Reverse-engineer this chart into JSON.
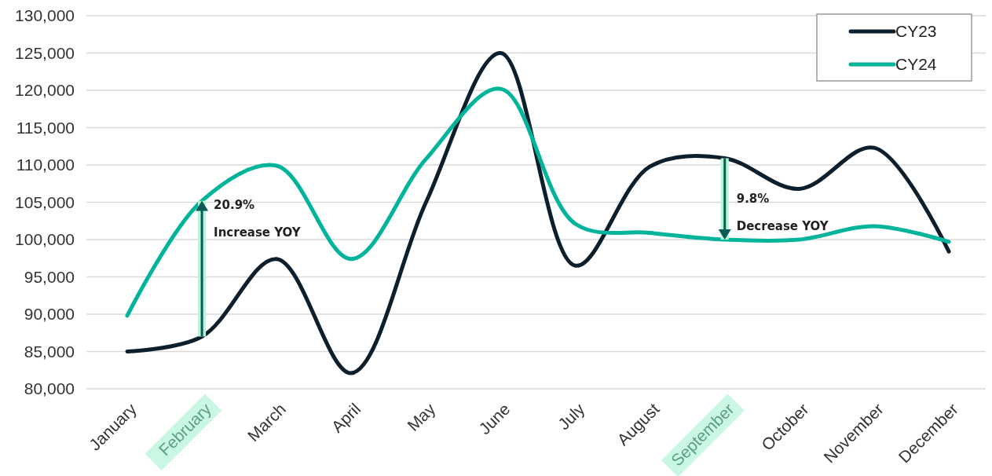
{
  "chart_data": {
    "type": "line",
    "categories": [
      "January",
      "February",
      "March",
      "April",
      "May",
      "June",
      "July",
      "August",
      "September",
      "October",
      "November",
      "December"
    ],
    "series": [
      {
        "name": "CY23",
        "color": "#0d1f2d",
        "values": [
          85000,
          87000,
          97400,
          82100,
          105000,
          125000,
          96500,
          109800,
          110900,
          106800,
          112300,
          98400
        ]
      },
      {
        "name": "CY24",
        "color": "#00b49c",
        "values": [
          89800,
          105200,
          109900,
          97400,
          110800,
          120200,
          102100,
          100900,
          100000,
          100000,
          101800,
          99700
        ]
      }
    ],
    "ylim": [
      80000,
      130000
    ],
    "yticks": [
      {
        "value": 80000,
        "label": "80,000"
      },
      {
        "value": 85000,
        "label": "85,000"
      },
      {
        "value": 90000,
        "label": "90,000"
      },
      {
        "value": 95000,
        "label": "95,000"
      },
      {
        "value": 100000,
        "label": "100,000"
      },
      {
        "value": 105000,
        "label": "105,000"
      },
      {
        "value": 110000,
        "label": "110,000"
      },
      {
        "value": 115000,
        "label": "115,000"
      },
      {
        "value": 120000,
        "label": "120,000"
      },
      {
        "value": 125000,
        "label": "125,000"
      },
      {
        "value": 130000,
        "label": "130,000"
      }
    ],
    "grid": "y",
    "legend": "top right",
    "marker": "none",
    "line_style": "solid",
    "annotations": [
      {
        "text": "20.9%\nIncrease YOY",
        "x": "February",
        "y": 105200
      },
      {
        "text": "9.8%\nDecrease YOY",
        "x": "September",
        "y": 100000
      }
    ]
  }
}
